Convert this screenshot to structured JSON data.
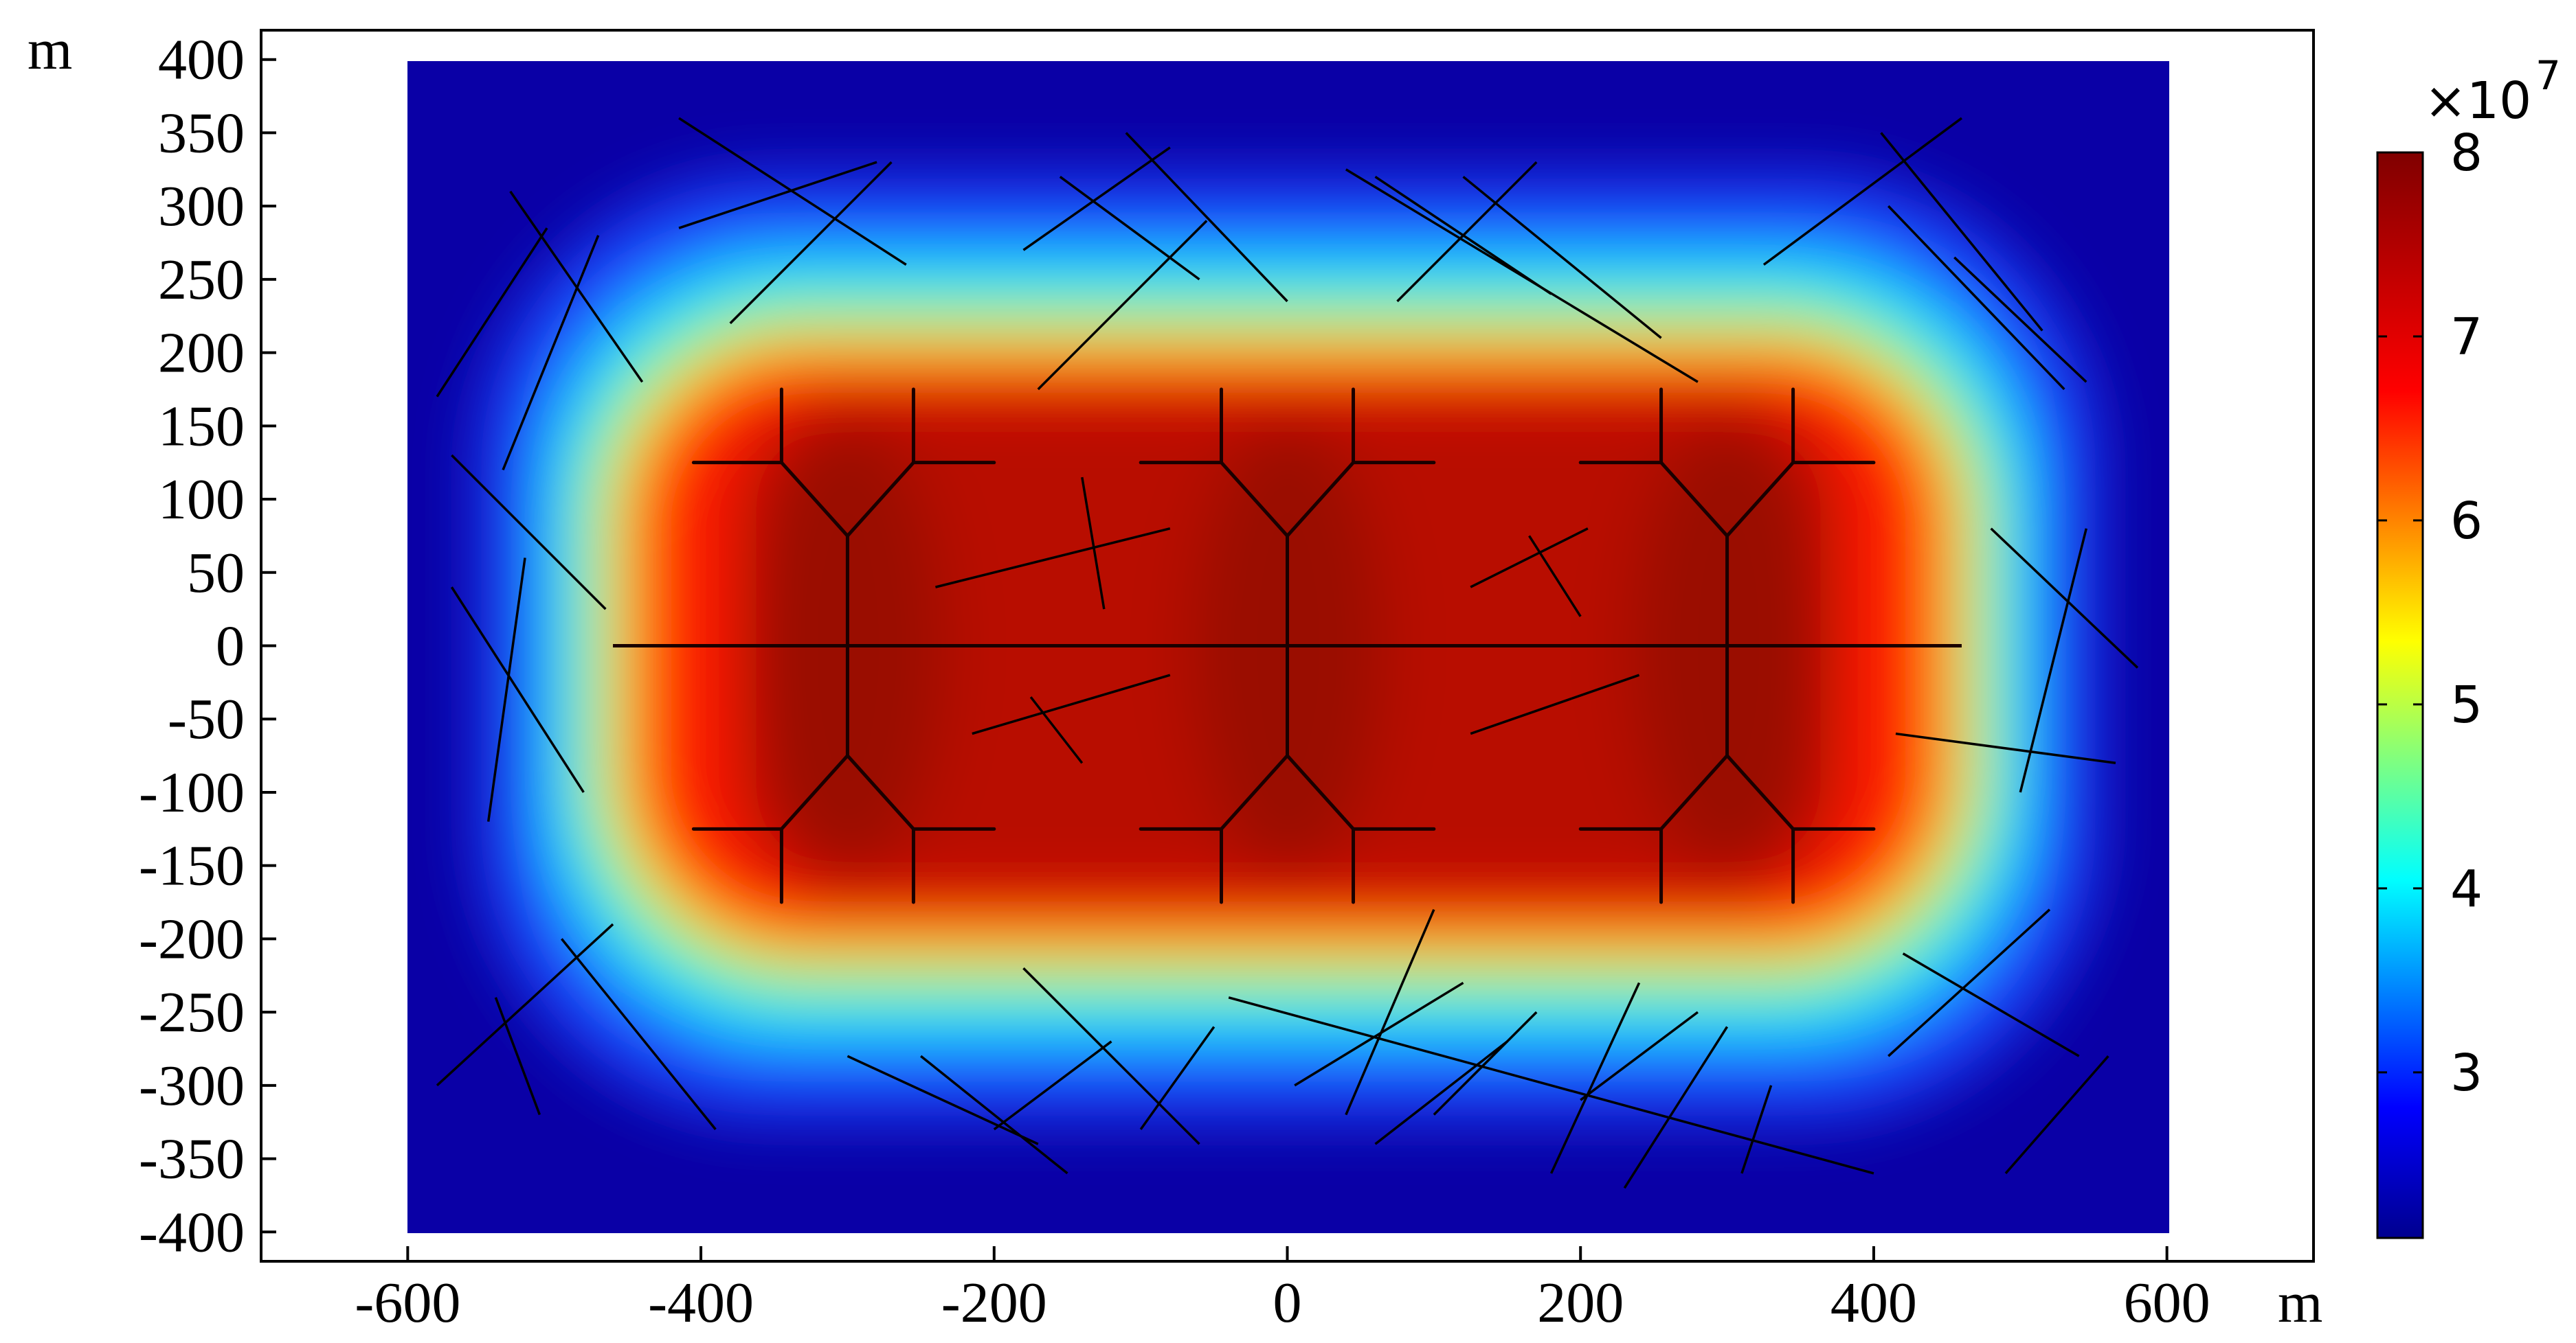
{
  "chart_data": {
    "type": "heatmap",
    "x_unit": "m",
    "y_unit": "m",
    "xlim": [
      -700,
      700
    ],
    "ylim": [
      -420,
      420
    ],
    "x_ticks": [
      -600,
      -400,
      -200,
      0,
      200,
      400,
      600
    ],
    "x_tick_labels": [
      "-600",
      "-400",
      "-200",
      "0",
      "200",
      "400",
      "600"
    ],
    "y_ticks": [
      400,
      350,
      300,
      250,
      200,
      150,
      100,
      50,
      0,
      -50,
      -100,
      -150,
      -200,
      -250,
      -300,
      -350,
      -400
    ],
    "y_tick_labels": [
      "400",
      "350",
      "300",
      "250",
      "200",
      "150",
      "100",
      "50",
      "0",
      "-50",
      "-100",
      "-150",
      "-200",
      "-250",
      "-300",
      "-350",
      "-400"
    ],
    "domain": {
      "x": [
        -600,
        600
      ],
      "y": [
        -400,
        400
      ]
    },
    "colorbar": {
      "multiplier_label": "×10",
      "exponent": "7",
      "ticks": [
        8,
        7,
        6,
        5,
        4,
        3
      ],
      "tick_labels": [
        "8",
        "7",
        "6",
        "5",
        "4",
        "3"
      ],
      "range": [
        2.1,
        8.0
      ],
      "colormap": [
        "#00008f",
        "#0000ff",
        "#00ffff",
        "#ffff00",
        "#ff0000",
        "#800000"
      ]
    },
    "fractures": {
      "hydraulic_main": [
        [
          -460,
          0,
          460,
          0
        ]
      ],
      "hydraulic_branches": [
        [
          -300,
          0,
          -300,
          75
        ],
        [
          -300,
          75,
          -345,
          125
        ],
        [
          -300,
          75,
          -255,
          125
        ],
        [
          -345,
          125,
          -345,
          175
        ],
        [
          -345,
          125,
          -405,
          125
        ],
        [
          -255,
          125,
          -255,
          175
        ],
        [
          -255,
          125,
          -200,
          125
        ],
        [
          -300,
          0,
          -300,
          -75
        ],
        [
          -300,
          -75,
          -345,
          -125
        ],
        [
          -300,
          -75,
          -255,
          -125
        ],
        [
          -345,
          -125,
          -345,
          -175
        ],
        [
          -345,
          -125,
          -405,
          -125
        ],
        [
          -255,
          -125,
          -255,
          -175
        ],
        [
          -255,
          -125,
          -200,
          -125
        ],
        [
          0,
          0,
          0,
          75
        ],
        [
          0,
          75,
          -45,
          125
        ],
        [
          0,
          75,
          45,
          125
        ],
        [
          -45,
          125,
          -45,
          175
        ],
        [
          -45,
          125,
          -100,
          125
        ],
        [
          45,
          125,
          45,
          175
        ],
        [
          45,
          125,
          100,
          125
        ],
        [
          0,
          0,
          0,
          -75
        ],
        [
          0,
          -75,
          -45,
          -125
        ],
        [
          0,
          -75,
          45,
          -125
        ],
        [
          -45,
          -125,
          -45,
          -175
        ],
        [
          -45,
          -125,
          -100,
          -125
        ],
        [
          45,
          -125,
          45,
          -175
        ],
        [
          45,
          -125,
          100,
          -125
        ],
        [
          300,
          0,
          300,
          75
        ],
        [
          300,
          75,
          255,
          125
        ],
        [
          300,
          75,
          345,
          125
        ],
        [
          255,
          125,
          255,
          175
        ],
        [
          255,
          125,
          200,
          125
        ],
        [
          345,
          125,
          345,
          175
        ],
        [
          345,
          125,
          400,
          125
        ],
        [
          300,
          0,
          300,
          -75
        ],
        [
          300,
          -75,
          255,
          -125
        ],
        [
          300,
          -75,
          345,
          -125
        ],
        [
          255,
          -125,
          255,
          -175
        ],
        [
          255,
          -125,
          200,
          -125
        ],
        [
          345,
          -125,
          345,
          -175
        ],
        [
          345,
          -125,
          400,
          -125
        ]
      ],
      "natural": [
        [
          -240,
          40,
          -80,
          80
        ],
        [
          -140,
          115,
          -125,
          25
        ],
        [
          -215,
          -60,
          -80,
          -20
        ],
        [
          -175,
          -35,
          -140,
          -80
        ],
        [
          125,
          40,
          205,
          80
        ],
        [
          165,
          75,
          200,
          20
        ],
        [
          125,
          -60,
          240,
          -20
        ],
        [
          -415,
          360,
          -260,
          260
        ],
        [
          -415,
          285,
          -280,
          330
        ],
        [
          -380,
          220,
          -270,
          330
        ],
        [
          -530,
          310,
          -440,
          180
        ],
        [
          -580,
          170,
          -505,
          285
        ],
        [
          -535,
          120,
          -470,
          280
        ],
        [
          -570,
          130,
          -465,
          25
        ],
        [
          -520,
          60,
          -545,
          -120
        ],
        [
          -570,
          40,
          -480,
          -100
        ],
        [
          -580,
          -300,
          -460,
          -190
        ],
        [
          -495,
          -200,
          -390,
          -330
        ],
        [
          -540,
          -240,
          -510,
          -320
        ],
        [
          -300,
          -280,
          -170,
          -340
        ],
        [
          -250,
          -280,
          -150,
          -360
        ],
        [
          -200,
          -330,
          -120,
          -270
        ],
        [
          -180,
          -220,
          -60,
          -340
        ],
        [
          -100,
          -330,
          -50,
          -260
        ],
        [
          -155,
          320,
          -60,
          250
        ],
        [
          -180,
          270,
          -80,
          340
        ],
        [
          -110,
          350,
          0,
          235
        ],
        [
          -170,
          175,
          -55,
          290
        ],
        [
          40,
          325,
          280,
          180
        ],
        [
          75,
          235,
          170,
          330
        ],
        [
          60,
          320,
          180,
          240
        ],
        [
          120,
          320,
          255,
          210
        ],
        [
          325,
          260,
          460,
          360
        ],
        [
          405,
          350,
          515,
          215
        ],
        [
          410,
          300,
          530,
          175
        ],
        [
          455,
          265,
          545,
          180
        ],
        [
          480,
          80,
          580,
          -15
        ],
        [
          545,
          80,
          500,
          -100
        ],
        [
          415,
          -60,
          565,
          -80
        ],
        [
          -40,
          -240,
          400,
          -360
        ],
        [
          40,
          -320,
          100,
          -180
        ],
        [
          5,
          -300,
          120,
          -230
        ],
        [
          60,
          -340,
          150,
          -270
        ],
        [
          100,
          -320,
          170,
          -250
        ],
        [
          180,
          -360,
          240,
          -230
        ],
        [
          200,
          -310,
          280,
          -250
        ],
        [
          230,
          -370,
          300,
          -260
        ],
        [
          310,
          -360,
          330,
          -300
        ],
        [
          410,
          -280,
          520,
          -180
        ],
        [
          420,
          -210,
          540,
          -280
        ],
        [
          490,
          -360,
          560,
          -280
        ]
      ]
    }
  }
}
